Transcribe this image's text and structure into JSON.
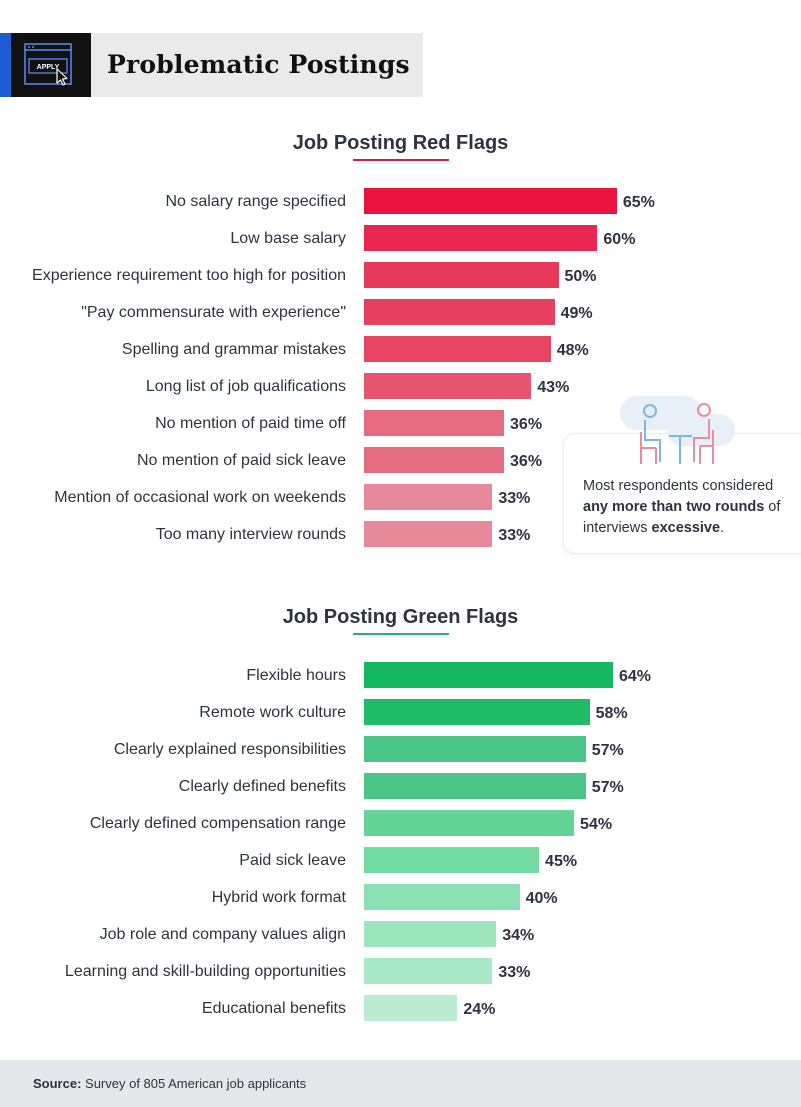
{
  "header": {
    "title": "Problematic Postings",
    "icon_label": "APPLY",
    "icon": "browser-window-cursor-icon"
  },
  "colors": {
    "red_base": "#e8143f",
    "green_base": "#14b95f",
    "text": "#2d3340"
  },
  "chart_data": [
    {
      "type": "bar",
      "orientation": "horizontal",
      "title": "Job Posting Red Flags",
      "categories": [
        "No salary range specified",
        "Low base salary",
        "Experience requirement too high for position",
        "\"Pay commensurate with experience\"",
        "Spelling and grammar mistakes",
        "Long list of job qualifications",
        "No mention of paid time off",
        "No mention of paid sick leave",
        "Mention of occasional work on weekends",
        "Too many interview rounds"
      ],
      "values": [
        65,
        60,
        50,
        49,
        48,
        43,
        36,
        36,
        33,
        33
      ],
      "value_labels": [
        "65%",
        "60%",
        "50%",
        "49%",
        "48%",
        "43%",
        "36%",
        "36%",
        "33%",
        "33%"
      ],
      "colors": [
        "#e8143f",
        "#e9274e",
        "#e73a5b",
        "#e73f5f",
        "#e84462",
        "#e6546f",
        "#e56c80",
        "#e56c80",
        "#e68a9b",
        "#e68a9b"
      ],
      "xlim": [
        0,
        100
      ],
      "grid": false,
      "legend": "none"
    },
    {
      "type": "bar",
      "orientation": "horizontal",
      "title": "Job Posting Green Flags",
      "categories": [
        "Flexible hours",
        "Remote work culture",
        "Clearly explained responsibilities",
        "Clearly defined benefits",
        "Clearly defined compensation range",
        "Paid sick leave",
        "Hybrid work format",
        "Job role and company values align",
        "Learning and skill-building opportunities",
        "Educational benefits"
      ],
      "values": [
        64,
        58,
        57,
        57,
        54,
        45,
        40,
        34,
        33,
        24
      ],
      "value_labels": [
        "64%",
        "58%",
        "57%",
        "57%",
        "54%",
        "45%",
        "40%",
        "34%",
        "33%",
        "24%"
      ],
      "colors": [
        "#14b95f",
        "#1fbd68",
        "#4cc588",
        "#4cc588",
        "#63d496",
        "#72daa3",
        "#8ae0b2",
        "#9de6bd",
        "#a8e8c5",
        "#b9ecd0"
      ],
      "xlim": [
        0,
        100
      ],
      "grid": false,
      "legend": "none"
    }
  ],
  "callout": {
    "icon": "interview-people-icon",
    "line1": "Most respondents considered",
    "bold1": "any more than two rounds",
    "line2": "of interviews",
    "bold2": "excessive",
    "end": "."
  },
  "footer": {
    "source_label": "Source:",
    "source_text": "Survey of 805 American job applicants"
  }
}
